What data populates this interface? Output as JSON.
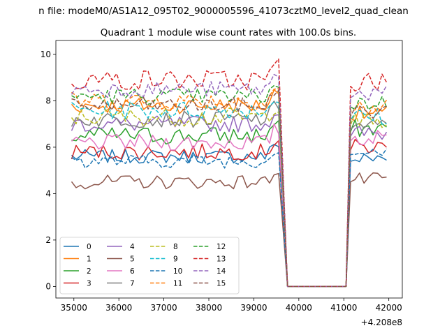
{
  "chart_data": {
    "type": "line",
    "suptitle": "n file: modeM0/AS1A12_095T02_9000005596_41073cztM0_level2_quad_clean",
    "title": "Quadrant 1 module wise count rates with 100.0s bins.",
    "xlabel": "",
    "ylabel": "",
    "x_offset_label": "+4.208e8",
    "xlim": [
      34600,
      42300
    ],
    "ylim": [
      -0.5,
      10.6
    ],
    "xticks": [
      35000,
      36000,
      37000,
      38000,
      39000,
      40000,
      41000,
      42000
    ],
    "yticks": [
      0,
      2,
      4,
      6,
      8,
      10
    ],
    "grid": false,
    "legend": {
      "placement": "lower-left",
      "columns": 4
    },
    "gap": {
      "start": 39750,
      "end": 41050,
      "low_start": 39650,
      "low_end": 41150
    },
    "x": {
      "start": 34950,
      "end": 41950,
      "step": 100
    },
    "series": [
      {
        "name": "0",
        "color": "#1f77b4",
        "dash": false,
        "mean": 5.6,
        "amp": 0.3,
        "after": 5.5
      },
      {
        "name": "1",
        "color": "#ff7f0e",
        "dash": false,
        "mean": 7.8,
        "amp": 0.35,
        "after": 7.4
      },
      {
        "name": "2",
        "color": "#2ca02c",
        "dash": false,
        "mean": 6.5,
        "amp": 0.4,
        "after": 6.8
      },
      {
        "name": "3",
        "color": "#d62728",
        "dash": false,
        "mean": 5.8,
        "amp": 0.35,
        "after": 6.0
      },
      {
        "name": "4",
        "color": "#9467bd",
        "dash": false,
        "mean": 7.0,
        "amp": 0.35,
        "after": 6.6
      },
      {
        "name": "5",
        "color": "#8c564b",
        "dash": false,
        "mean": 4.5,
        "amp": 0.3,
        "after": 4.6
      },
      {
        "name": "6",
        "color": "#e377c2",
        "dash": false,
        "mean": 6.2,
        "amp": 0.35,
        "after": 6.4
      },
      {
        "name": "7",
        "color": "#7f7f7f",
        "dash": false,
        "mean": 7.2,
        "amp": 0.35,
        "after": 6.9
      },
      {
        "name": "8",
        "color": "#bcbd22",
        "dash": true,
        "mean": 7.3,
        "amp": 0.4,
        "after": 7.1
      },
      {
        "name": "9",
        "color": "#17becf",
        "dash": true,
        "mean": 7.6,
        "amp": 0.4,
        "after": 7.3
      },
      {
        "name": "10",
        "color": "#1f77b4",
        "dash": true,
        "mean": 5.4,
        "amp": 0.3,
        "after": 5.8
      },
      {
        "name": "11",
        "color": "#ff7f0e",
        "dash": true,
        "mean": 8.0,
        "amp": 0.4,
        "after": 7.7
      },
      {
        "name": "12",
        "color": "#2ca02c",
        "dash": true,
        "mean": 8.2,
        "amp": 0.35,
        "after": 7.9
      },
      {
        "name": "13",
        "color": "#d62728",
        "dash": true,
        "mean": 8.9,
        "amp": 0.45,
        "after": 8.8
      },
      {
        "name": "14",
        "color": "#9467bd",
        "dash": true,
        "mean": 8.5,
        "amp": 0.35,
        "after": 8.3
      },
      {
        "name": "15",
        "color": "#8c564b",
        "dash": true,
        "mean": 7.8,
        "amp": 0.35,
        "after": 7.5
      }
    ]
  }
}
